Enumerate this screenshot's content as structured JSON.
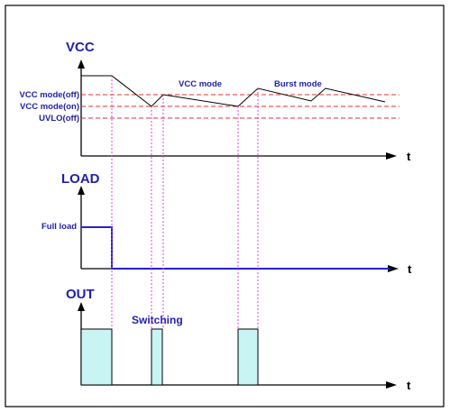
{
  "vcc_panel": {
    "title": "VCC",
    "axis_label": "t",
    "levels": {
      "vcc_mode_off": "VCC mode(off)",
      "vcc_mode_on": "VCC mode(on)",
      "uvlo_off": "UVLO(off)"
    },
    "mode_labels": {
      "vcc_mode": "VCC mode",
      "burst_mode": "Burst mode"
    }
  },
  "load_panel": {
    "title": "LOAD",
    "axis_label": "t",
    "full_load_label": "Full load"
  },
  "out_panel": {
    "title": "OUT",
    "axis_label": "t",
    "switching_label": "Switching"
  },
  "colors": {
    "title_text": "#1f1fa8",
    "threshold_lines": "#e03030",
    "marker_lines": "#e040e0",
    "load_trace": "#2222cc",
    "pulse_fill": "#c8f4f4"
  }
}
